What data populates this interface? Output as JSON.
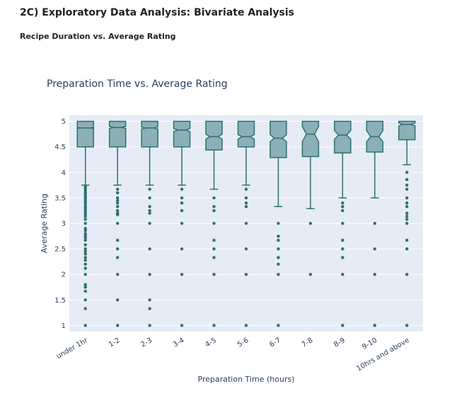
{
  "page": {
    "section_title": "2C) Exploratory Data Analysis: Bivariate Analysis",
    "subtitle": "Recipe Duration vs. Average Rating"
  },
  "chart_data": {
    "type": "box",
    "title": "Preparation Time vs. Average Rating",
    "xlabel": "Preparation Time (hours)",
    "ylabel": "Average Rating",
    "ylim": [
      0.88,
      5.12
    ],
    "yticks": [
      1,
      1.5,
      2,
      2.5,
      3,
      3.5,
      4,
      4.5,
      5
    ],
    "ytick_labels": [
      "1",
      "1.5",
      "2",
      "2.5",
      "3",
      "3.5",
      "4",
      "4.5",
      "5"
    ],
    "grid": true,
    "notched": true,
    "colors": {
      "plot_bg": "#e5ecf6",
      "box_fill": "#8bb0b5",
      "box_line": "#2e7072",
      "point": "#2e7072"
    },
    "categories": [
      "under 1hr",
      "1-2",
      "2-3",
      "3-4",
      "4-5",
      "5-6",
      "6-7",
      "7-8",
      "8-9",
      "9-10",
      "10hrs and above"
    ],
    "boxes": [
      {
        "q1": 4.5,
        "median": 4.87,
        "q3": 5.0,
        "lower_fence": 3.75,
        "upper_fence": 5.0,
        "notch_low": 4.86,
        "notch_high": 4.88,
        "outliers": [
          3.72,
          3.68,
          3.64,
          3.6,
          3.56,
          3.52,
          3.5,
          3.46,
          3.42,
          3.38,
          3.33,
          3.3,
          3.26,
          3.22,
          3.18,
          3.14,
          3.08,
          3.0,
          2.9,
          2.86,
          2.8,
          2.76,
          2.72,
          2.67,
          2.58,
          2.5,
          2.45,
          2.4,
          2.33,
          2.28,
          2.2,
          2.12,
          2.0,
          1.8,
          1.75,
          1.67,
          1.5,
          1.33,
          1.0
        ]
      },
      {
        "q1": 4.5,
        "median": 4.88,
        "q3": 5.0,
        "lower_fence": 3.75,
        "upper_fence": 5.0,
        "notch_low": 4.86,
        "notch_high": 4.9,
        "outliers": [
          3.67,
          3.6,
          3.5,
          3.45,
          3.4,
          3.33,
          3.25,
          3.2,
          3.17,
          3.0,
          2.67,
          2.5,
          2.33,
          2.0,
          1.5,
          1.0
        ]
      },
      {
        "q1": 4.5,
        "median": 4.87,
        "q3": 5.0,
        "lower_fence": 3.75,
        "upper_fence": 5.0,
        "notch_low": 4.85,
        "notch_high": 4.89,
        "outliers": [
          3.67,
          3.5,
          3.33,
          3.25,
          3.2,
          3.0,
          2.5,
          2.0,
          1.5,
          1.33,
          1.0
        ]
      },
      {
        "q1": 4.5,
        "median": 4.83,
        "q3": 5.0,
        "lower_fence": 3.75,
        "upper_fence": 5.0,
        "notch_low": 4.8,
        "notch_high": 4.86,
        "outliers": [
          3.67,
          3.5,
          3.4,
          3.25,
          3.0,
          2.5,
          2.0,
          1.0
        ]
      },
      {
        "q1": 4.44,
        "median": 4.7,
        "q3": 5.0,
        "lower_fence": 3.67,
        "upper_fence": 5.0,
        "notch_low": 4.65,
        "notch_high": 4.75,
        "outliers": [
          3.5,
          3.33,
          3.25,
          3.0,
          2.67,
          2.5,
          2.33,
          2.0,
          1.0
        ]
      },
      {
        "q1": 4.5,
        "median": 4.7,
        "q3": 5.0,
        "lower_fence": 3.75,
        "upper_fence": 5.0,
        "notch_low": 4.65,
        "notch_high": 4.74,
        "outliers": [
          3.67,
          3.5,
          3.4,
          3.33,
          3.0,
          2.5,
          2.0,
          1.0
        ]
      },
      {
        "q1": 4.29,
        "median": 4.67,
        "q3": 5.0,
        "lower_fence": 3.33,
        "upper_fence": 5.0,
        "notch_low": 4.6,
        "notch_high": 4.74,
        "outliers": [
          3.0,
          2.75,
          2.67,
          2.5,
          2.33,
          2.2,
          2.0,
          1.0
        ]
      },
      {
        "q1": 4.31,
        "median": 4.75,
        "q3": 5.0,
        "lower_fence": 3.29,
        "upper_fence": 5.0,
        "notch_low": 4.6,
        "notch_high": 4.9,
        "outliers": [
          3.0,
          2.0
        ]
      },
      {
        "q1": 4.38,
        "median": 4.73,
        "q3": 5.0,
        "lower_fence": 3.5,
        "upper_fence": 5.0,
        "notch_low": 4.65,
        "notch_high": 4.82,
        "outliers": [
          3.4,
          3.33,
          3.25,
          3.0,
          2.67,
          2.5,
          2.33,
          2.0,
          1.0
        ]
      },
      {
        "q1": 4.4,
        "median": 4.7,
        "q3": 5.0,
        "lower_fence": 3.5,
        "upper_fence": 5.0,
        "notch_low": 4.6,
        "notch_high": 4.82,
        "outliers": [
          3.0,
          2.5,
          2.0,
          1.0
        ]
      },
      {
        "q1": 4.64,
        "median": 4.94,
        "q3": 5.0,
        "lower_fence": 4.15,
        "upper_fence": 5.0,
        "notch_low": 4.91,
        "notch_high": 4.97,
        "outliers": [
          4.0,
          3.86,
          3.75,
          3.67,
          3.5,
          3.4,
          3.33,
          3.2,
          3.14,
          3.08,
          3.0,
          2.67,
          2.5,
          2.0,
          1.0
        ]
      }
    ]
  }
}
